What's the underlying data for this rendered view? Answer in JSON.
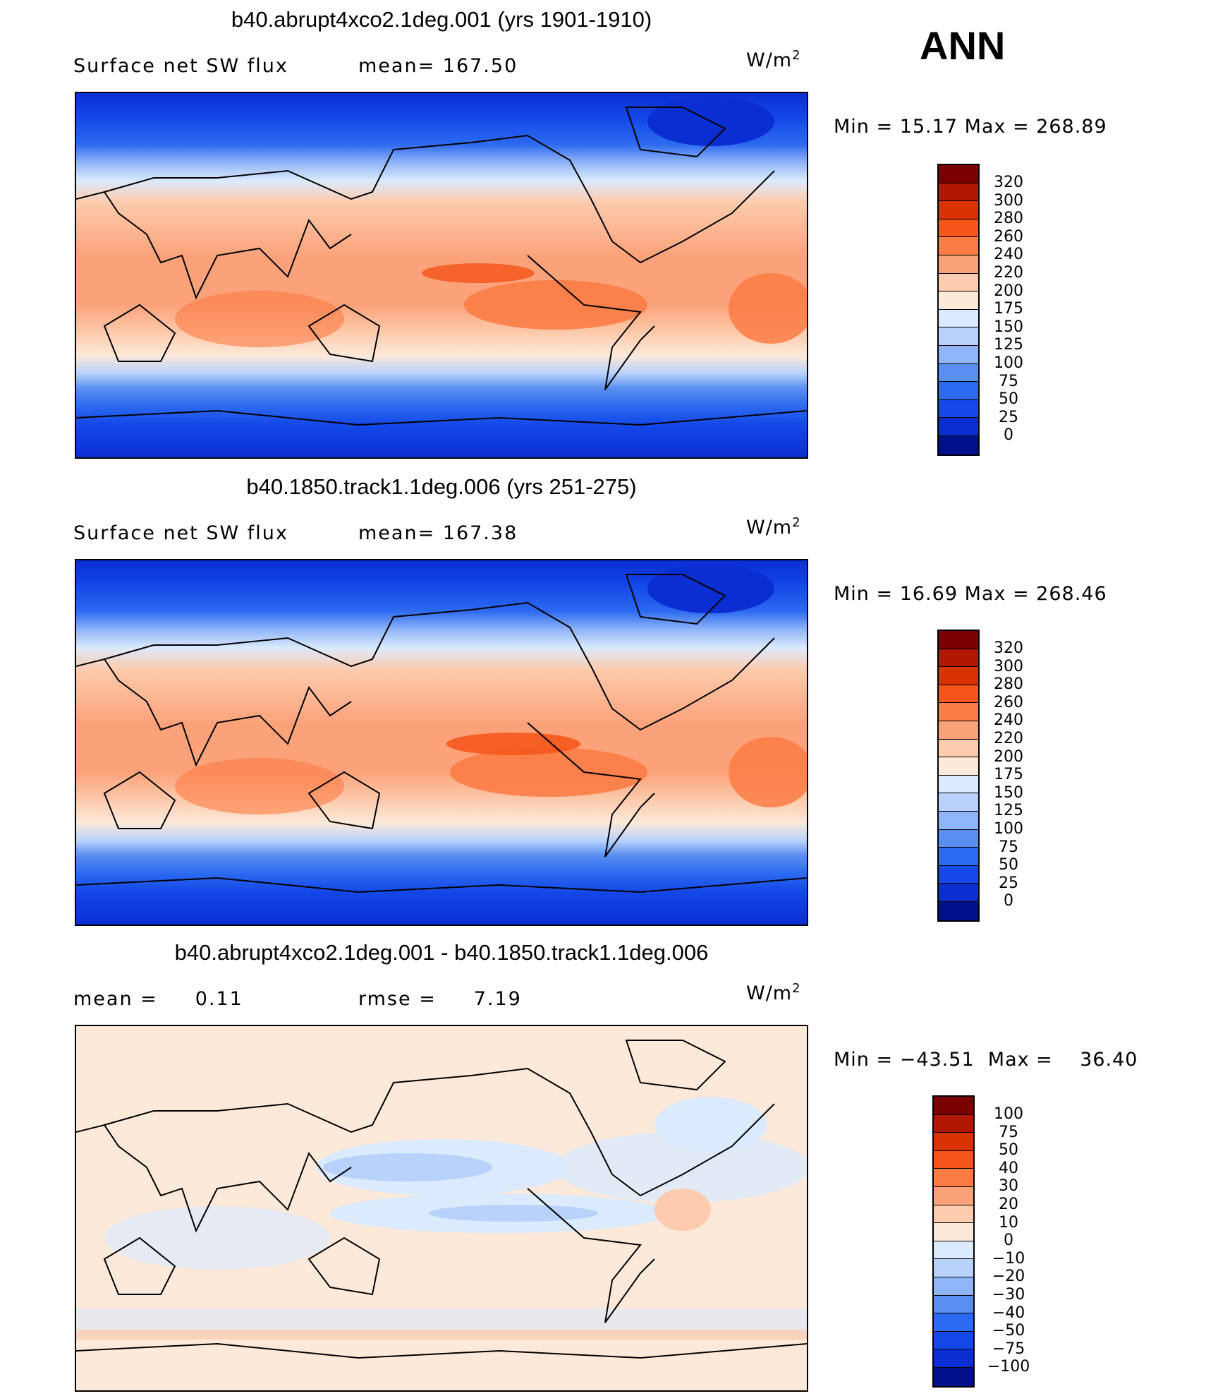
{
  "season": "ANN",
  "panels": [
    {
      "title": "b40.abrupt4xco2.1deg.001 (yrs 1901-1910)",
      "left_label": "Surface net SW flux",
      "center_label": "mean= 167.50",
      "units_base": "W/m",
      "units_exp": "2",
      "minmax": "Min =   15.17 Max = 268.89",
      "colorbar": {
        "levels": [
          "320",
          "300",
          "280",
          "260",
          "240",
          "220",
          "200",
          "175",
          "150",
          "125",
          "100",
          "75",
          "50",
          "25",
          "0"
        ],
        "colors": [
          "#7a0000",
          "#b01800",
          "#d83300",
          "#f55519",
          "#fb7c45",
          "#fba27a",
          "#fdcbad",
          "#fde9da",
          "#dbeafd",
          "#b8d2fb",
          "#8fb4f7",
          "#5a8ff0",
          "#2c6af0",
          "#1448e8",
          "#0a2ed2",
          "#00108a"
        ]
      }
    },
    {
      "title": "b40.1850.track1.1deg.006 (yrs 251-275)",
      "left_label": "Surface net SW flux",
      "center_label": "mean= 167.38",
      "units_base": "W/m",
      "units_exp": "2",
      "minmax": "Min =   16.69 Max = 268.46",
      "colorbar": {
        "levels": [
          "320",
          "300",
          "280",
          "260",
          "240",
          "220",
          "200",
          "175",
          "150",
          "125",
          "100",
          "75",
          "50",
          "25",
          "0"
        ],
        "colors": [
          "#7a0000",
          "#b01800",
          "#d83300",
          "#f55519",
          "#fb7c45",
          "#fba27a",
          "#fdcbad",
          "#fde9da",
          "#dbeafd",
          "#b8d2fb",
          "#8fb4f7",
          "#5a8ff0",
          "#2c6af0",
          "#1448e8",
          "#0a2ed2",
          "#00108a"
        ]
      }
    },
    {
      "title": "b40.abrupt4xco2.1deg.001 - b40.1850.track1.1deg.006",
      "left_label": "mean =     0.11",
      "center_label": "rmse =     7.19",
      "units_base": "W/m",
      "units_exp": "2",
      "minmax": "Min = −43.51  Max =    36.40",
      "colorbar": {
        "levels": [
          "100",
          "75",
          "50",
          "40",
          "30",
          "20",
          "10",
          "0",
          "−10",
          "−20",
          "−30",
          "−40",
          "−50",
          "−75",
          "−100"
        ],
        "colors": [
          "#7a0000",
          "#b01800",
          "#d83300",
          "#f55519",
          "#fb7c45",
          "#fba27a",
          "#fdcbad",
          "#fde9da",
          "#dbeafd",
          "#b8d2fb",
          "#8fb4f7",
          "#5a8ff0",
          "#2c6af0",
          "#1448e8",
          "#0a2ed2",
          "#00108a"
        ]
      }
    }
  ]
}
